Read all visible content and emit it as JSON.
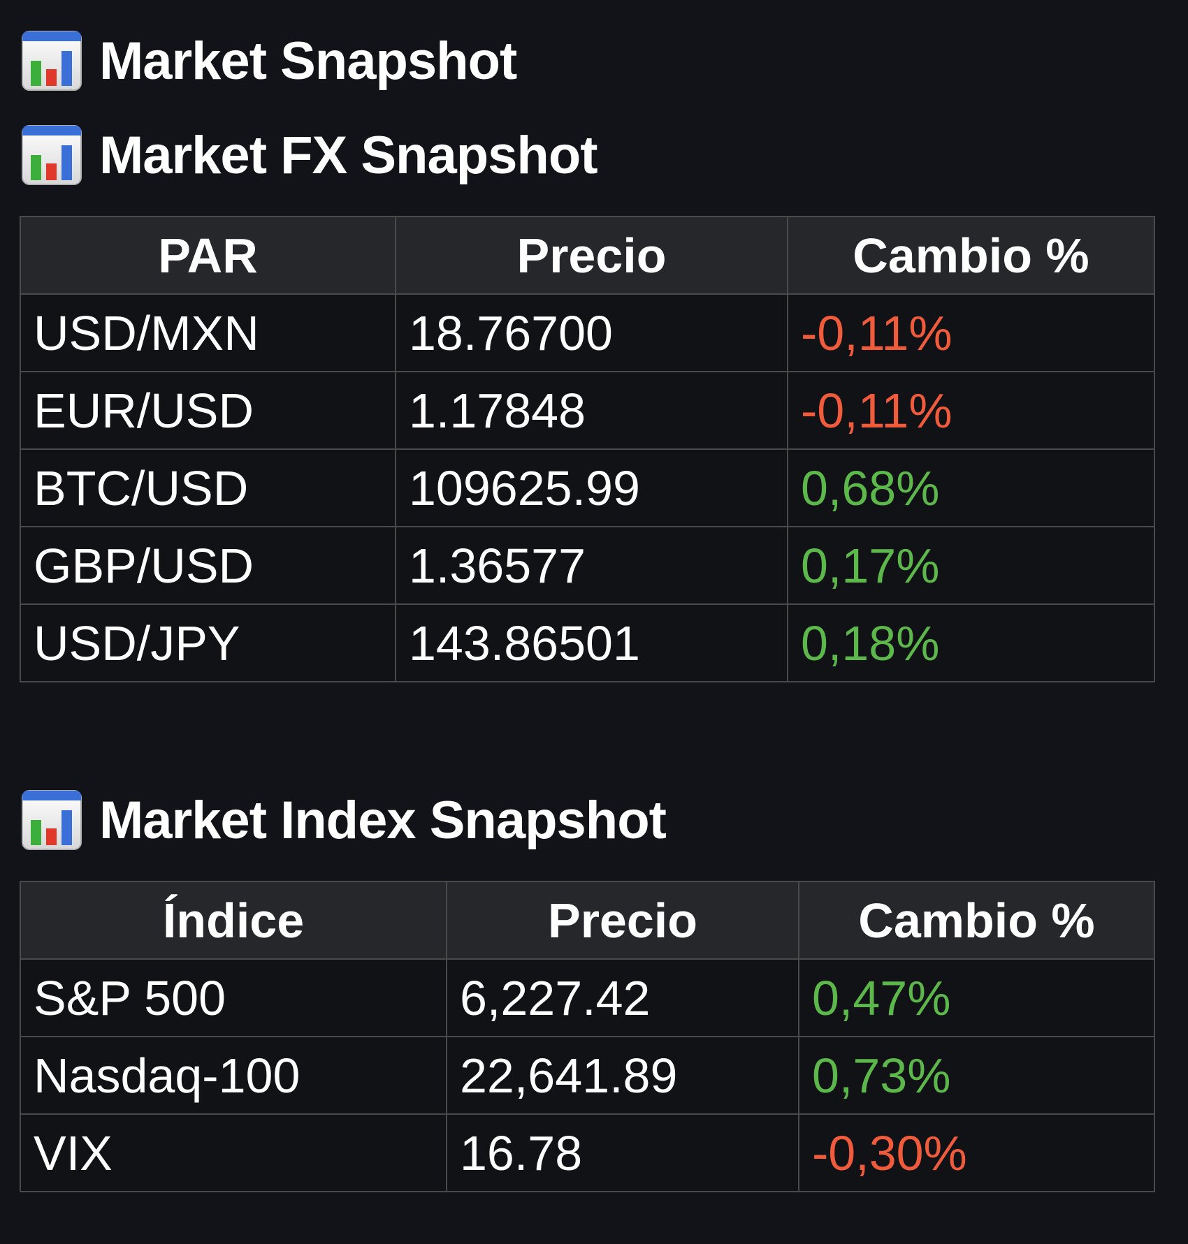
{
  "headings": {
    "main": "Market Snapshot",
    "fx": "Market FX Snapshot",
    "index": "Market Index Snapshot",
    "icon": "bar-chart-icon"
  },
  "colors": {
    "background": "#121318",
    "header_bg": "#26272a",
    "border": "#4a4a4a",
    "negative": "#f05b3c",
    "positive": "#5cb84a"
  },
  "fx_table": {
    "headers": [
      "PAR",
      "Precio",
      "Cambio %"
    ],
    "rows": [
      {
        "pair": "USD/MXN",
        "price": "18.76700",
        "change": "-0,11%",
        "direction": "neg"
      },
      {
        "pair": "EUR/USD",
        "price": "1.17848",
        "change": "-0,11%",
        "direction": "neg"
      },
      {
        "pair": "BTC/USD",
        "price": "109625.99",
        "change": "0,68%",
        "direction": "pos"
      },
      {
        "pair": "GBP/USD",
        "price": "1.36577",
        "change": "0,17%",
        "direction": "pos"
      },
      {
        "pair": "USD/JPY",
        "price": "143.86501",
        "change": "0,18%",
        "direction": "pos"
      }
    ]
  },
  "index_table": {
    "headers": [
      "Índice",
      "Precio",
      "Cambio %"
    ],
    "rows": [
      {
        "name": "S&P 500",
        "price": "6,227.42",
        "change": "0,47%",
        "direction": "pos"
      },
      {
        "name": "Nasdaq-100",
        "price": "22,641.89",
        "change": "0,73%",
        "direction": "pos"
      },
      {
        "name": "VIX",
        "price": "16.78",
        "change": "-0,30%",
        "direction": "neg"
      }
    ]
  }
}
